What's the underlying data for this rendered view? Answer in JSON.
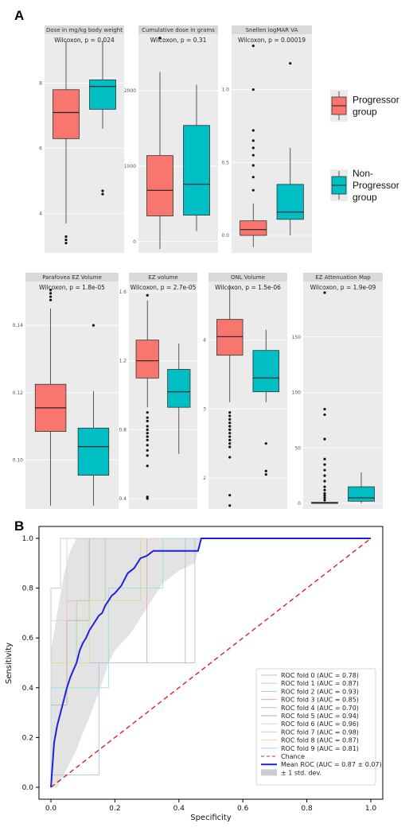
{
  "panel_a_label": "A",
  "panel_b_label": "B",
  "chart_data": [
    {
      "type": "box",
      "title": "Dose in mg/kg body weight",
      "pvalue": "Wilcoxon, p = 0.024",
      "yticks": [
        "4",
        "6",
        "8"
      ],
      "ylim": [
        2.8,
        9.5
      ],
      "boxes": [
        {
          "group": "Progressor group",
          "whisker_low": 3.7,
          "q1": 6.3,
          "median": 7.1,
          "q3": 7.8,
          "whisker_high": 9.3,
          "outliers": [
            3.3,
            3.2,
            3.1
          ]
        },
        {
          "group": "Non-Progressor group",
          "whisker_low": 6.6,
          "q1": 7.2,
          "median": 7.9,
          "q3": 8.1,
          "whisker_high": 9.3,
          "outliers": [
            4.7,
            4.6
          ]
        }
      ]
    },
    {
      "type": "box",
      "title": "Cumulative dose in grams",
      "pvalue": "Wilcoxon, p = 0.31",
      "yticks": [
        "0",
        "1000",
        "2000"
      ],
      "ylim": [
        -150,
        2750
      ],
      "boxes": [
        {
          "group": "Progressor group",
          "whisker_low": -100,
          "q1": 340,
          "median": 680,
          "q3": 1140,
          "whisker_high": 2250,
          "outliers": [
            2700
          ]
        },
        {
          "group": "Non-Progressor group",
          "whisker_low": 140,
          "q1": 350,
          "median": 760,
          "q3": 1540,
          "whisker_high": 2080,
          "outliers": []
        }
      ]
    },
    {
      "type": "box",
      "title": "Snellen logMAR VA",
      "pvalue": "Wilcoxon, p = 0.00019",
      "yticks": [
        "0.0",
        "0.5",
        "1.0"
      ],
      "ylim": [
        -0.12,
        1.38
      ],
      "boxes": [
        {
          "group": "Progressor group",
          "whisker_low": -0.08,
          "q1": 0.0,
          "median": 0.04,
          "q3": 0.1,
          "whisker_high": 0.22,
          "outliers": [
            0.31,
            0.4,
            0.48,
            0.55,
            0.6,
            0.65,
            0.72,
            1.0,
            1.3
          ]
        },
        {
          "group": "Non-Progressor group",
          "whisker_low": 0.0,
          "q1": 0.11,
          "median": 0.16,
          "q3": 0.35,
          "whisker_high": 0.6,
          "outliers": [
            1.18
          ]
        }
      ]
    },
    {
      "type": "box",
      "title": "Parafovea EZ Volume",
      "pvalue": "Wilcoxon, p = 1.8e-05",
      "yticks": [
        "0.10",
        "0.12",
        "0.14"
      ],
      "ylim": [
        0.0855,
        0.153
      ],
      "boxes": [
        {
          "group": "Progressor group",
          "whisker_low": 0.0865,
          "q1": 0.1085,
          "median": 0.1155,
          "q3": 0.1225,
          "whisker_high": 0.145,
          "outliers": [
            0.1475,
            0.1485,
            0.1495,
            0.1505
          ]
        },
        {
          "group": "Non-Progressor group",
          "whisker_low": 0.0865,
          "q1": 0.0955,
          "median": 0.104,
          "q3": 0.1095,
          "whisker_high": 0.1205,
          "outliers": [
            0.14
          ]
        }
      ]
    },
    {
      "type": "box",
      "title": "EZ volume",
      "pvalue": "Wilcoxon, p = 2.7e-05",
      "yticks": [
        "0.4",
        "0.8",
        "1.2",
        "1.6"
      ],
      "ylim": [
        0.34,
        1.66
      ],
      "boxes": [
        {
          "group": "Progressor group",
          "whisker_low": 0.93,
          "q1": 1.1,
          "median": 1.2,
          "q3": 1.32,
          "whisker_high": 1.55,
          "outliers": [
            1.58,
            0.9,
            0.87,
            0.85,
            0.82,
            0.8,
            0.78,
            0.76,
            0.74,
            0.71,
            0.68,
            0.65,
            0.59,
            0.41,
            0.4
          ]
        },
        {
          "group": "Non-Progressor group",
          "whisker_low": 0.66,
          "q1": 0.93,
          "median": 1.02,
          "q3": 1.15,
          "whisker_high": 1.3,
          "outliers": []
        }
      ]
    },
    {
      "type": "box",
      "title": "ONL Volume",
      "pvalue": "Wilcoxon, p = 1.5e-06",
      "yticks": [
        "2",
        "3",
        "4"
      ],
      "ylim": [
        1.55,
        4.85
      ],
      "boxes": [
        {
          "group": "Progressor group",
          "whisker_low": 3.1,
          "q1": 3.78,
          "median": 4.05,
          "q3": 4.3,
          "whisker_high": 4.8,
          "outliers": [
            2.95,
            2.9,
            2.85,
            2.8,
            2.75,
            2.7,
            2.65,
            2.6,
            2.55,
            2.5,
            2.45,
            2.3,
            1.75,
            1.6
          ]
        },
        {
          "group": "Non-Progressor group",
          "whisker_low": 3.1,
          "q1": 3.25,
          "median": 3.45,
          "q3": 3.85,
          "whisker_high": 4.15,
          "outliers": [
            2.5,
            2.1,
            2.05
          ]
        }
      ]
    },
    {
      "type": "box",
      "title": "EZ Attenuation Map",
      "pvalue": "Wilcoxon, p = 1.9e-09",
      "yticks": [
        "0",
        "50",
        "100",
        "150"
      ],
      "ylim": [
        -5,
        200
      ],
      "boxes": [
        {
          "group": "Progressor group",
          "whisker_low": 0,
          "q1": 0,
          "median": 0.5,
          "q3": 1,
          "whisker_high": 2,
          "outliers": [
            3,
            5,
            7,
            9,
            12,
            15,
            20,
            25,
            30,
            35,
            40,
            58,
            80,
            85,
            190
          ]
        },
        {
          "group": "Non-Progressor group",
          "whisker_low": 0,
          "q1": 2,
          "median": 5,
          "q3": 15,
          "whisker_high": 28,
          "outliers": []
        }
      ]
    },
    {
      "type": "line",
      "xlabel": "Specificity",
      "ylabel": "Sensitivity",
      "xlim": [
        0,
        1
      ],
      "ylim": [
        0,
        1
      ],
      "xticks": [
        "0.0",
        "0.2",
        "0.4",
        "0.6",
        "0.8",
        "1.0"
      ],
      "yticks": [
        "0.0",
        "0.2",
        "0.4",
        "0.6",
        "0.8",
        "1.0"
      ],
      "series": [
        {
          "name": "ROC fold 0 (AUC = 0.78)",
          "color": "#aebfdd",
          "x": [
            0,
            0,
            0.15,
            0.15,
            0.42,
            0.42,
            1
          ],
          "y": [
            0,
            0.05,
            0.05,
            0.5,
            0.5,
            1,
            1
          ]
        },
        {
          "name": "ROC fold 1 (AUC = 0.87)",
          "color": "#f2c09c",
          "x": [
            0,
            0,
            0.05,
            0.05,
            0.28,
            0.28,
            1
          ],
          "y": [
            0,
            0.5,
            0.5,
            0.75,
            0.75,
            1,
            1
          ]
        },
        {
          "name": "ROC fold 2 (AUC = 0.93)",
          "color": "#a9d6a0",
          "x": [
            0,
            0,
            0.08,
            0.08,
            0.17,
            0.17,
            1
          ],
          "y": [
            0,
            0.5,
            0.5,
            0.75,
            0.75,
            1,
            1
          ]
        },
        {
          "name": "ROC fold 3 (AUC = 0.85)",
          "color": "#eca5a5",
          "x": [
            0,
            0,
            0.3,
            0.3,
            1
          ],
          "y": [
            0,
            0.5,
            0.5,
            1,
            1
          ]
        },
        {
          "name": "ROC fold 4 (AUC = 0.70)",
          "color": "#c8b6dc",
          "x": [
            0,
            0,
            0.45,
            0.45,
            1
          ],
          "y": [
            0,
            0.5,
            0.5,
            1,
            1
          ]
        },
        {
          "name": "ROC fold 5 (AUC = 0.94)",
          "color": "#c9a99d",
          "x": [
            0,
            0,
            0.05,
            0.05,
            0.12,
            0.12,
            1
          ],
          "y": [
            0,
            0.33,
            0.33,
            0.67,
            0.67,
            1,
            1
          ]
        },
        {
          "name": "ROC fold 6 (AUC = 0.96)",
          "color": "#f3bfe0",
          "x": [
            0,
            0,
            0.05,
            0.05,
            1
          ],
          "y": [
            0,
            0.67,
            0.67,
            1,
            1
          ]
        },
        {
          "name": "ROC fold 7 (AUC = 0.98)",
          "color": "#c8c8c8",
          "x": [
            0,
            0,
            0.03,
            0.03,
            1
          ],
          "y": [
            0,
            0.8,
            0.8,
            1,
            1
          ]
        },
        {
          "name": "ROC fold 8 (AUC = 0.87)",
          "color": "#dadd9a",
          "x": [
            0,
            0,
            0.12,
            0.12,
            0.28,
            0.28,
            1
          ],
          "y": [
            0,
            0.5,
            0.5,
            0.75,
            0.75,
            1,
            1
          ]
        },
        {
          "name": "ROC fold 9 (AUC = 0.81)",
          "color": "#9fdde4",
          "x": [
            0,
            0,
            0.18,
            0.18,
            0.35,
            0.35,
            1
          ],
          "y": [
            0,
            0.4,
            0.4,
            0.8,
            0.8,
            1,
            1
          ]
        },
        {
          "name": "Chance",
          "color": "#e02020",
          "dashed": true,
          "x": [
            0,
            1
          ],
          "y": [
            0,
            1
          ]
        },
        {
          "name": "Mean ROC (AUC = 0.87 ± 0.07)",
          "color": "#2020e0",
          "x": [
            0,
            0.01,
            0.02,
            0.03,
            0.04,
            0.05,
            0.06,
            0.07,
            0.08,
            0.09,
            0.1,
            0.11,
            0.12,
            0.13,
            0.14,
            0.15,
            0.16,
            0.17,
            0.18,
            0.19,
            0.2,
            0.22,
            0.24,
            0.26,
            0.28,
            0.3,
            0.32,
            0.34,
            0.36,
            0.38,
            0.4,
            0.42,
            0.44,
            0.46,
            0.47,
            0.5,
            0.6,
            0.7,
            0.8,
            0.9,
            1.0
          ],
          "y": [
            0,
            0.18,
            0.25,
            0.3,
            0.35,
            0.4,
            0.44,
            0.47,
            0.5,
            0.55,
            0.58,
            0.6,
            0.63,
            0.65,
            0.67,
            0.69,
            0.7,
            0.73,
            0.75,
            0.77,
            0.78,
            0.81,
            0.86,
            0.88,
            0.92,
            0.93,
            0.95,
            0.95,
            0.95,
            0.95,
            0.95,
            0.95,
            0.95,
            0.95,
            1.0,
            1.0,
            1.0,
            1.0,
            1.0,
            1.0,
            1.0
          ]
        },
        {
          "name": "± 1 std. dev.",
          "color": "#cccccc",
          "band": true,
          "x": [
            0,
            0.02,
            0.04,
            0.06,
            0.08,
            0.1,
            0.12,
            0.14,
            0.16,
            0.18,
            0.2,
            0.25,
            0.3,
            0.35,
            0.4,
            0.45,
            0.47,
            0.5,
            1.0
          ],
          "upper": [
            0.55,
            0.7,
            0.85,
            0.95,
            1.0,
            1.0,
            1.0,
            1.0,
            1.0,
            1.0,
            1.0,
            1.0,
            1.0,
            1.0,
            1.0,
            1.0,
            1.0,
            1.0,
            1.0
          ],
          "lower": [
            0,
            0,
            0.05,
            0.1,
            0.15,
            0.22,
            0.28,
            0.35,
            0.42,
            0.5,
            0.55,
            0.62,
            0.72,
            0.82,
            0.87,
            0.9,
            1.0,
            1.0,
            1.0
          ]
        }
      ]
    }
  ],
  "legend_a": [
    {
      "label": "Progressor",
      "label2": "group",
      "color": "#f8766d"
    },
    {
      "label": "Non-",
      "label2": "Progressor",
      "label3": "group",
      "color": "#00bfc4"
    }
  ],
  "colors": {
    "progressor": "#f8766d",
    "non_progressor": "#00bfc4",
    "panel_bg": "#ebebeb",
    "strip_bg": "#d9d9d9"
  }
}
